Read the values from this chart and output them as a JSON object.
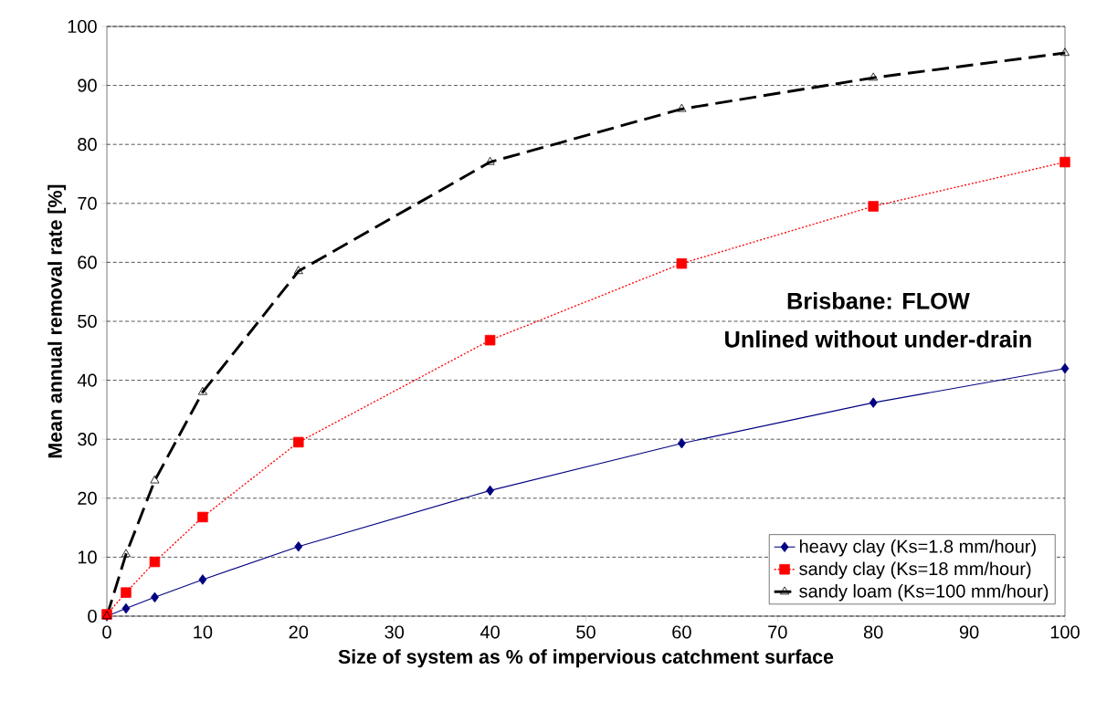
{
  "chart_data": {
    "type": "line",
    "xlabel": "Size of system as % of impervious catchment surface",
    "ylabel": "Mean annual removal rate [%]",
    "annotations": [
      "Brisbane: FLOW",
      "Unlined without under-drain"
    ],
    "x": [
      0,
      2,
      5,
      10,
      20,
      40,
      60,
      80,
      100
    ],
    "series": [
      {
        "name": "heavy clay (Ks=1.8 mm/hour)",
        "color": "#000080",
        "marker": "diamond",
        "line_style": "solid",
        "values": [
          0,
          1.3,
          3.2,
          6.2,
          11.8,
          21.3,
          29.3,
          36.2,
          42
        ]
      },
      {
        "name": "sandy clay (Ks=18 mm/hour)",
        "color": "#ff0000",
        "marker": "square",
        "line_style": "dotted",
        "values": [
          0.3,
          4,
          9.2,
          16.8,
          29.5,
          46.8,
          59.8,
          69.5,
          77
        ]
      },
      {
        "name": "sandy loam (Ks=100 mm/hour)",
        "color": "#000000",
        "marker": "triangle",
        "line_style": "dashed",
        "values": [
          0,
          10.5,
          23,
          38,
          58.5,
          77,
          86,
          91.3,
          95.5
        ]
      }
    ],
    "xlim": [
      0,
      100
    ],
    "ylim": [
      0,
      100
    ],
    "xticks": [
      0,
      10,
      20,
      30,
      40,
      50,
      60,
      70,
      80,
      90,
      100
    ],
    "yticks": [
      0,
      10,
      20,
      30,
      40,
      50,
      60,
      70,
      80,
      90,
      100
    ],
    "grid": "y",
    "legend": "bottom right"
  }
}
